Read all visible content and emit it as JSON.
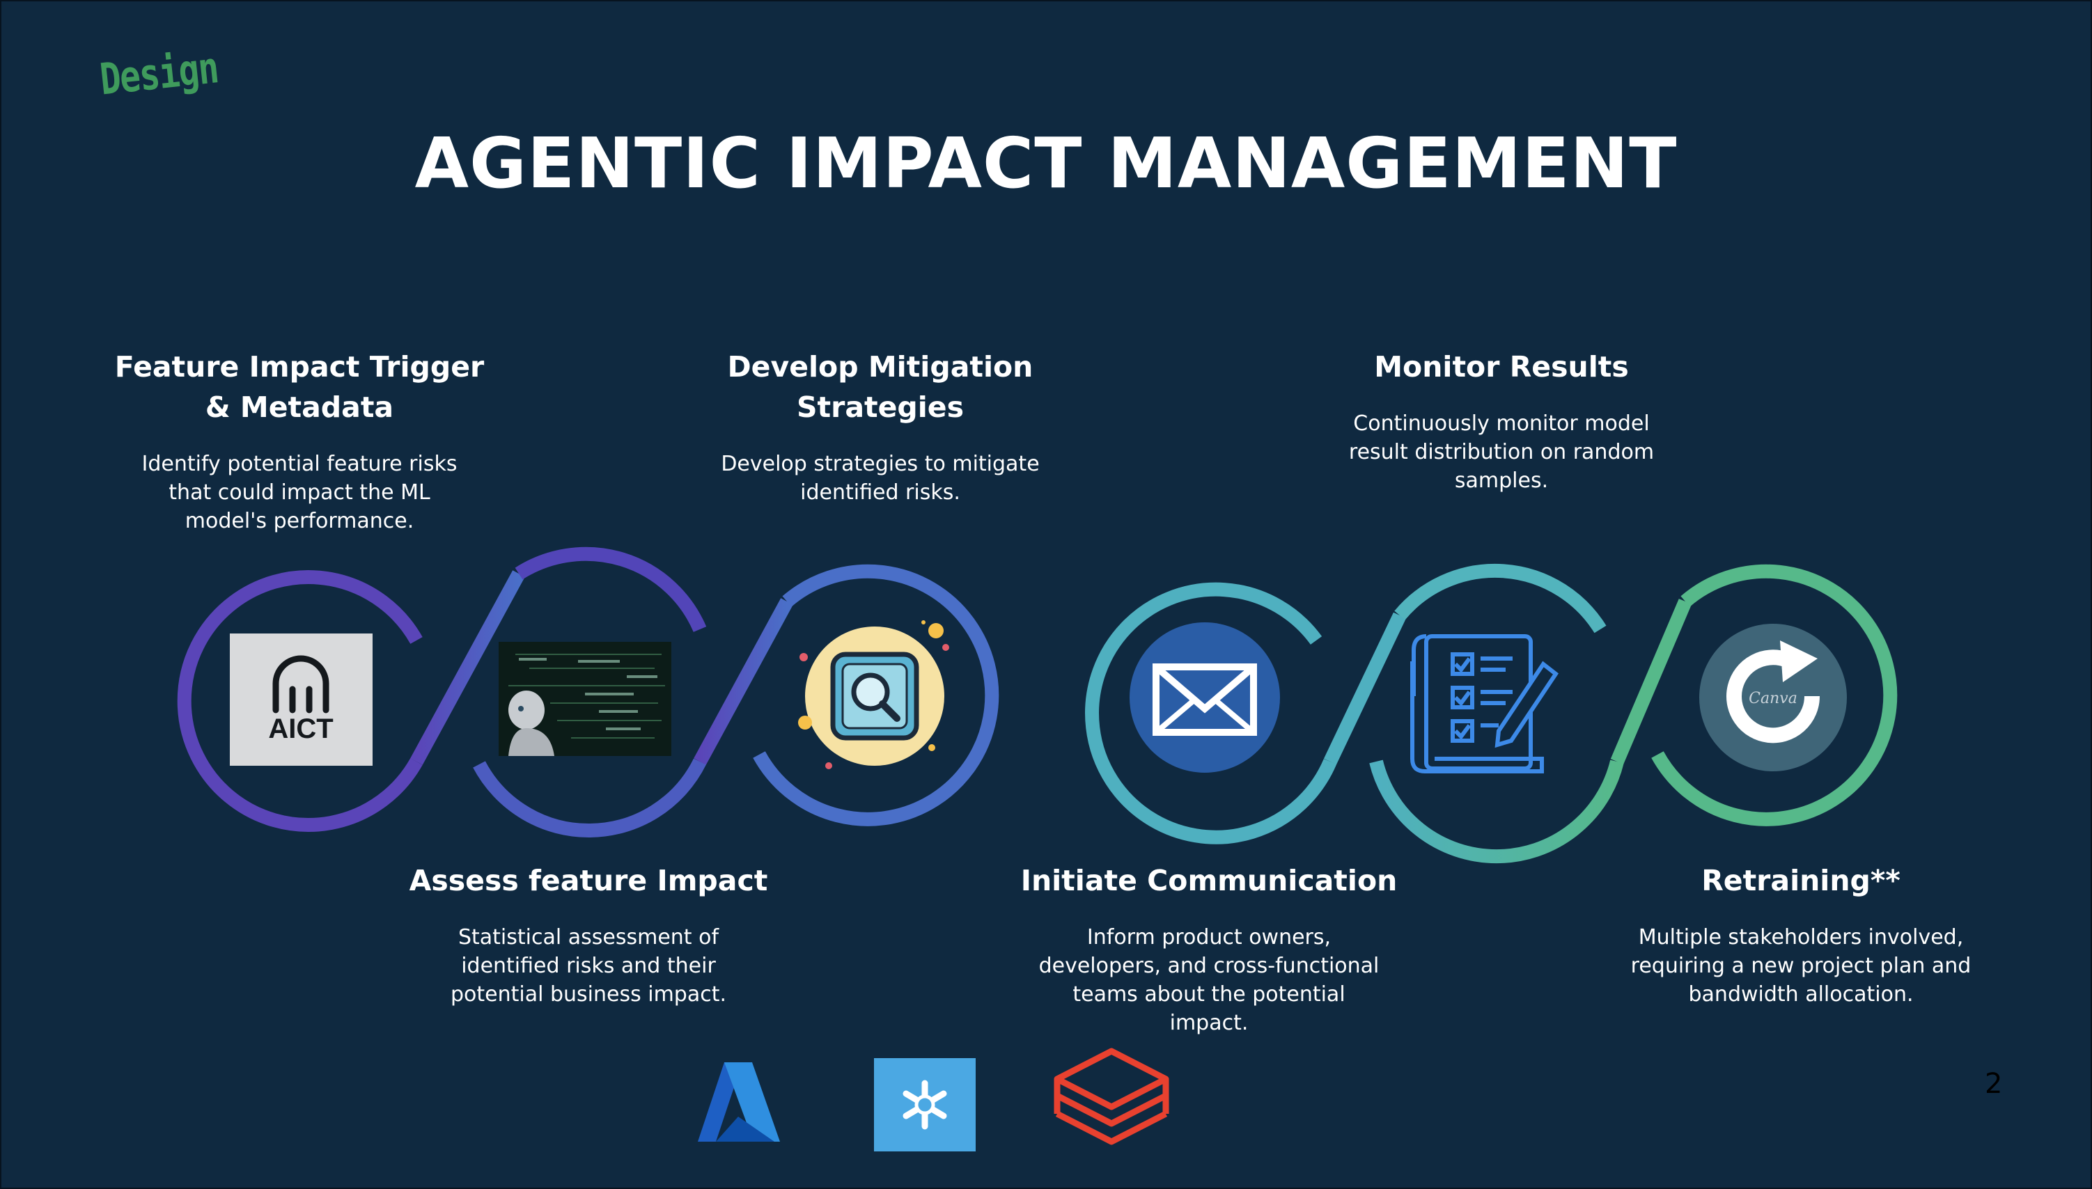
{
  "logo_text": "Design",
  "title": "AGENTIC IMPACT MANAGEMENT",
  "steps": [
    {
      "title": "Feature Impact Trigger & Metadata",
      "description": "Identify potential feature risks that could impact the ML model's performance."
    },
    {
      "title": "Assess feature Impact",
      "description": "Statistical assessment of identified risks and their potential business impact."
    },
    {
      "title": "Develop Mitigation Strategies",
      "description": "Develop strategies to mitigate identified risks."
    },
    {
      "title": "Initiate Communication",
      "description": "Inform product owners, developers, and cross-functional teams about the potential impact."
    },
    {
      "title": "Monitor Results",
      "description": "Continuously monitor model result distribution on random samples."
    },
    {
      "title": "Retraining**",
      "description": "Multiple stakeholders involved, requiring a new project plan and bandwidth allocation."
    }
  ],
  "aict_logo_text": "AICT",
  "canva_watermark": "Canva",
  "page_number": "2",
  "colors": {
    "background": "#0f2940",
    "purple": "#5a45b8",
    "blue": "#4a6fc8",
    "teal": "#4fb0c0",
    "green": "#56b98a",
    "logo_green": "#3f9b5c"
  },
  "icons": [
    "aict-logo",
    "ai-robot-image",
    "magnifier-icon",
    "envelope-icon",
    "checklist-icon",
    "refresh-icon",
    "azure-logo",
    "snowflake-logo",
    "databricks-logo"
  ]
}
